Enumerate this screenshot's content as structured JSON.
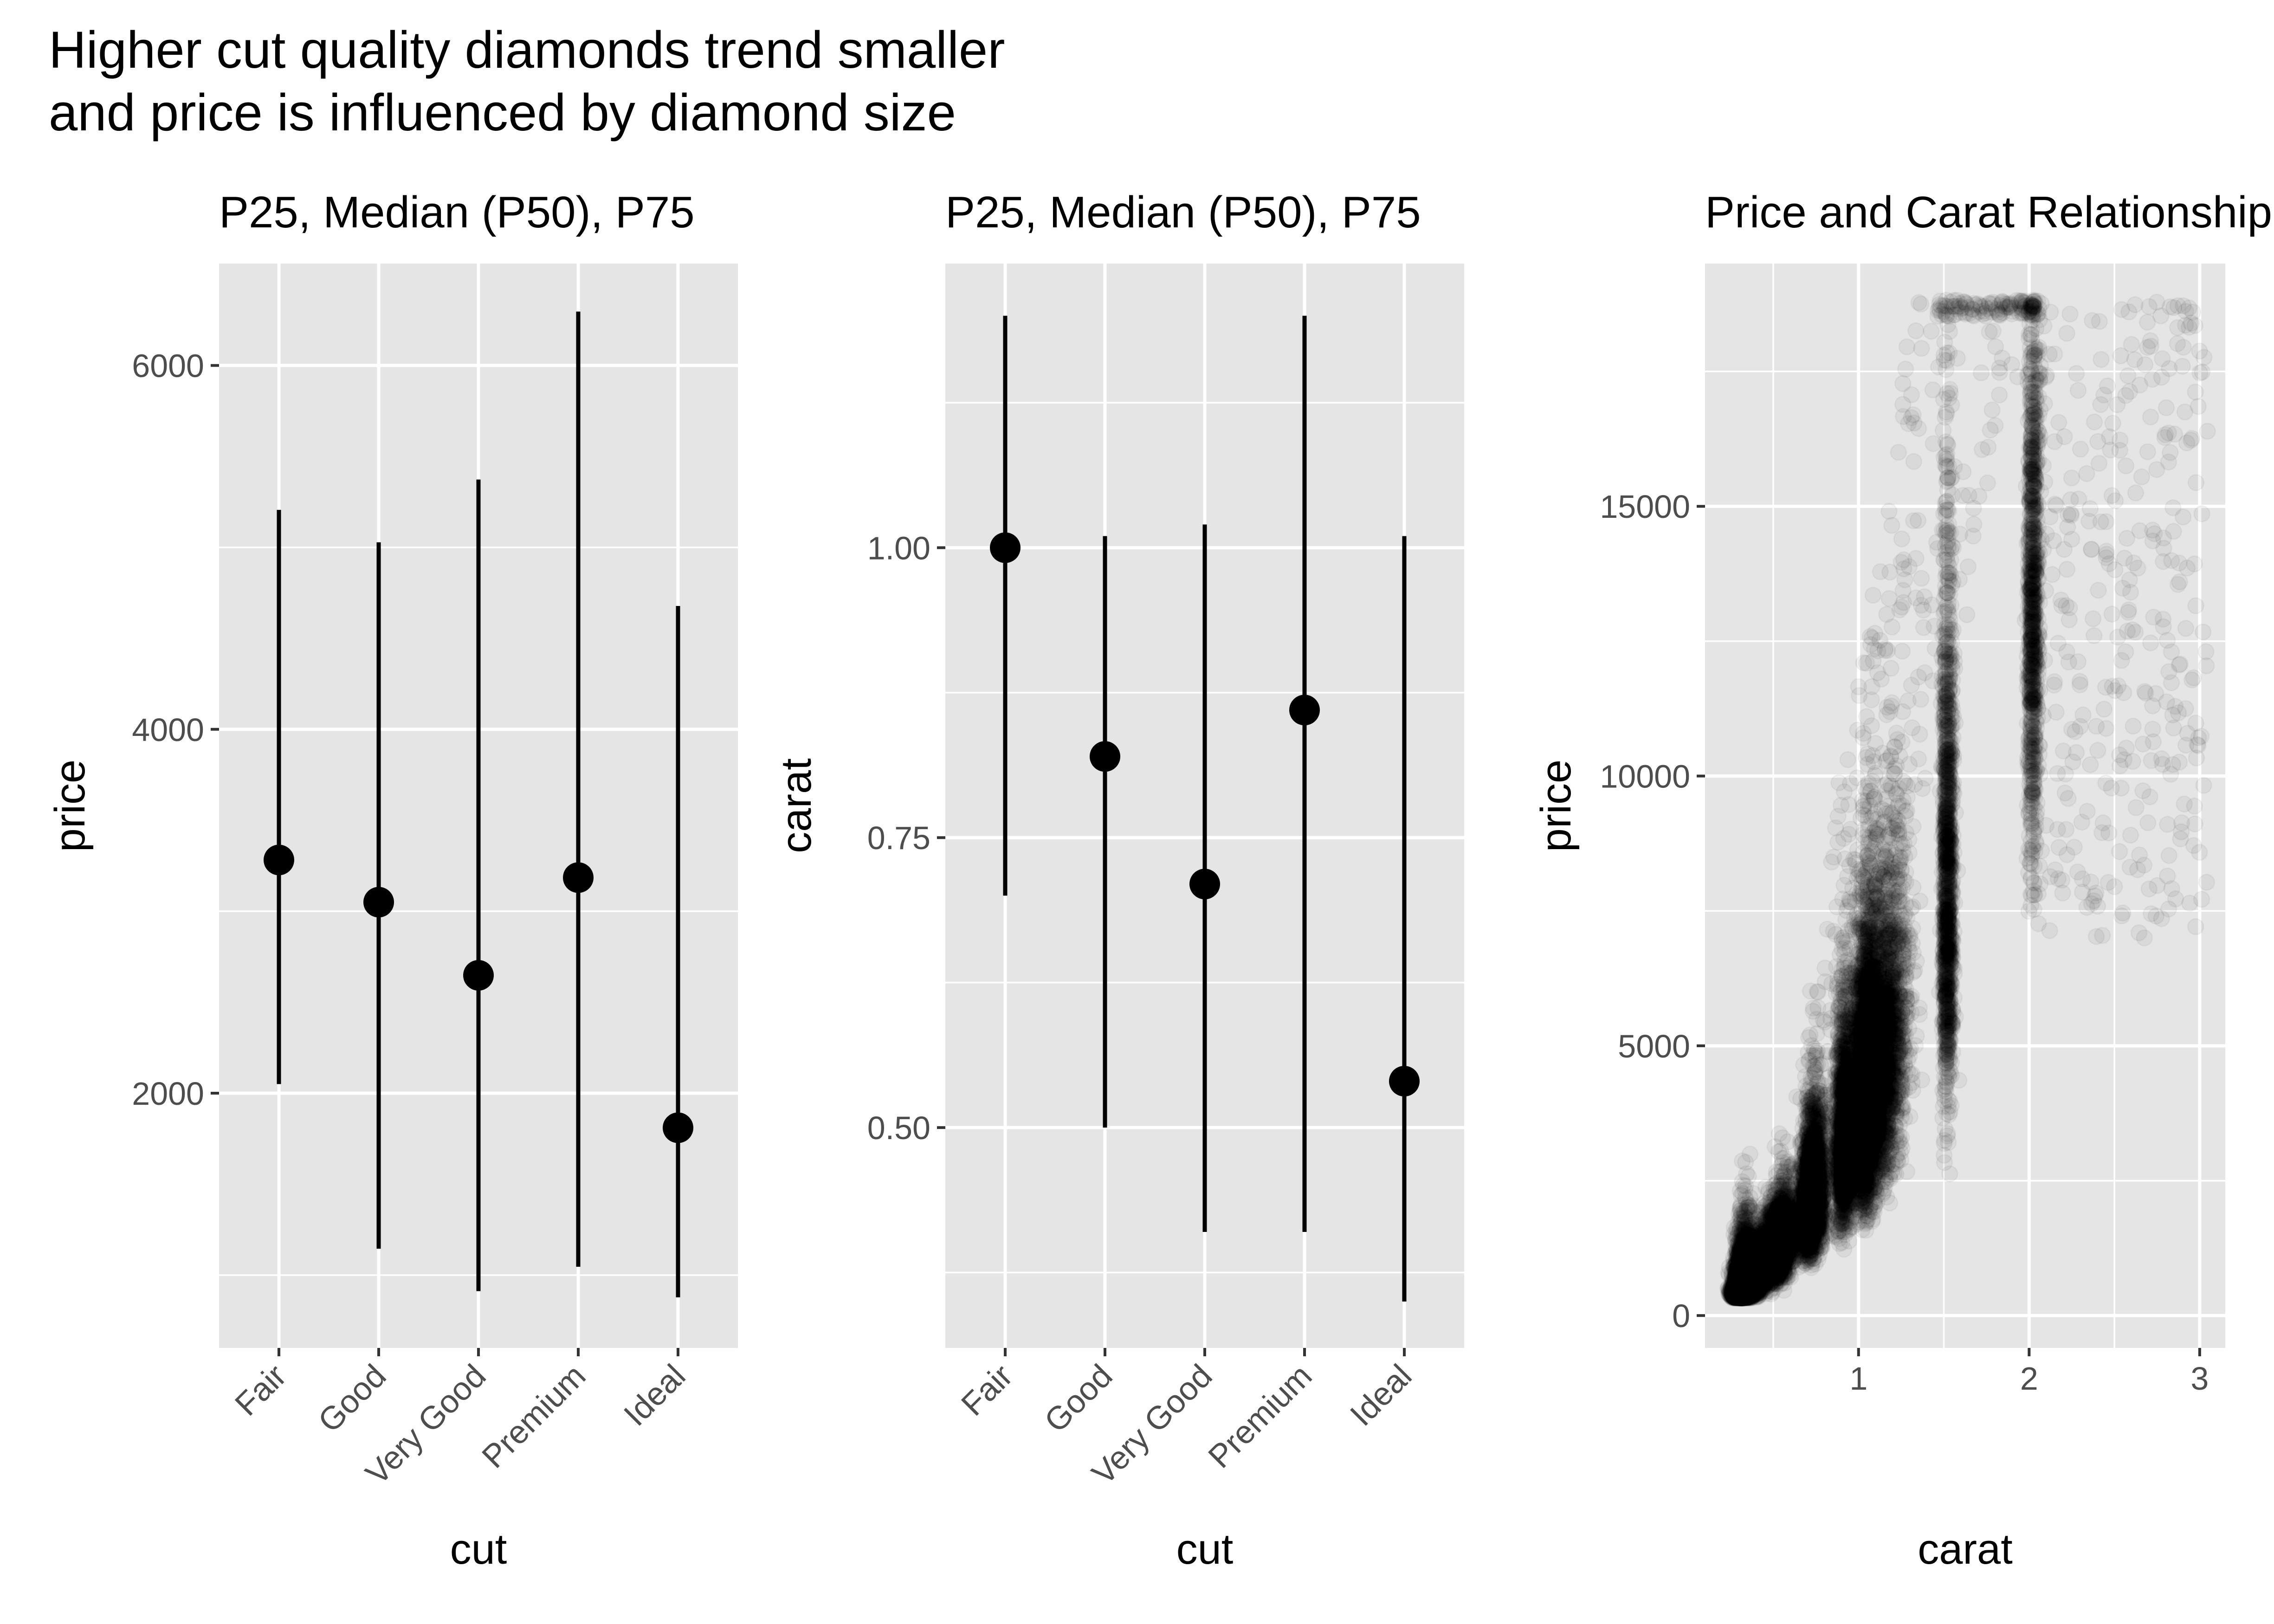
{
  "title": {
    "lines": [
      "Higher cut quality diamonds trend smaller",
      "and price is influenced by diamond size"
    ]
  },
  "colors": {
    "panel_background": "#e5e5e5",
    "grid": "#ffffff",
    "marks": "#000000",
    "tick_text": "#4d4d4d"
  },
  "chart_data": [
    {
      "type": "pointrange",
      "title": "P25, Median (P50), P75",
      "xlabel": "cut",
      "ylabel": "price",
      "categories": [
        "Fair",
        "Good",
        "Very Good",
        "Premium",
        "Ideal"
      ],
      "median": [
        3282,
        3050,
        2648,
        3185,
        1810
      ],
      "p25": [
        2050,
        1145,
        912,
        1046,
        878
      ],
      "p75": [
        5206,
        5028,
        5373,
        6296,
        4678
      ],
      "ylim": [
        600,
        6560
      ],
      "yticks": [
        2000,
        4000,
        6000
      ],
      "ytick_labels": [
        "2000",
        "4000",
        "6000"
      ],
      "grid": true
    },
    {
      "type": "pointrange",
      "title": "P25, Median (P50), P75",
      "xlabel": "cut",
      "ylabel": "carat",
      "categories": [
        "Fair",
        "Good",
        "Very Good",
        "Premium",
        "Ideal"
      ],
      "median": [
        1.0,
        0.82,
        0.71,
        0.86,
        0.54
      ],
      "p25": [
        0.7,
        0.5,
        0.41,
        0.41,
        0.35
      ],
      "p75": [
        1.2,
        1.01,
        1.02,
        1.2,
        1.01
      ],
      "ylim": [
        0.31,
        1.245
      ],
      "yticks": [
        0.5,
        0.75,
        1.0
      ],
      "ytick_labels": [
        "0.50",
        "0.75",
        "1.00"
      ],
      "grid": true
    },
    {
      "type": "scatter",
      "title": "Price and Carat Relationship",
      "xlabel": "carat",
      "ylabel": "price",
      "xlim": [
        0.1,
        3.15
      ],
      "ylim": [
        -600,
        19500
      ],
      "xticks": [
        1,
        2,
        3
      ],
      "xtick_labels": [
        "1",
        "2",
        "3"
      ],
      "yticks": [
        0,
        5000,
        10000,
        15000
      ],
      "ytick_labels": [
        "0",
        "5000",
        "10000",
        "15000"
      ],
      "point_alpha": 0.05,
      "grid": true,
      "points_sample": [
        [
          0.23,
          326
        ],
        [
          0.3,
          600
        ],
        [
          0.4,
          950
        ],
        [
          0.5,
          1550
        ],
        [
          0.7,
          2800
        ],
        [
          0.9,
          4000
        ],
        [
          1.0,
          5200
        ],
        [
          1.2,
          7000
        ],
        [
          1.5,
          10500
        ],
        [
          2.0,
          15000
        ],
        [
          2.5,
          17000
        ],
        [
          3.0,
          17500
        ]
      ]
    }
  ]
}
